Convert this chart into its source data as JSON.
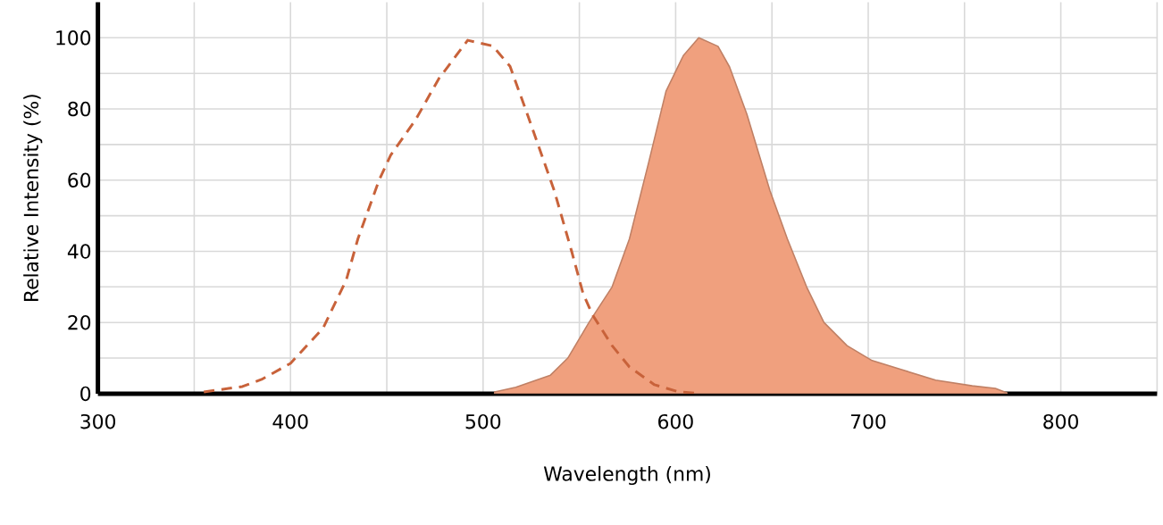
{
  "chart_data": {
    "type": "line",
    "xlabel": "Wavelength (nm)",
    "ylabel": "Relative Intensity (%)",
    "xlim": [
      300,
      850
    ],
    "ylim": [
      0,
      110
    ],
    "xticks": [
      300,
      {
        "value": 350,
        "label": null
      },
      400,
      {
        "value": 450,
        "label": null
      },
      500,
      {
        "value": 550,
        "label": null
      },
      600,
      {
        "value": 650,
        "label": null
      },
      700,
      {
        "value": 750,
        "label": null
      },
      800,
      {
        "value": 850,
        "label": null
      }
    ],
    "yticks": [
      0,
      {
        "value": 10,
        "label": null
      },
      20,
      {
        "value": 30,
        "label": null
      },
      40,
      {
        "value": 50,
        "label": null
      },
      60,
      {
        "value": 70,
        "label": null
      },
      80,
      {
        "value": 90,
        "label": null
      },
      100
    ],
    "grid": true,
    "series": [
      {
        "line_style": "dashed",
        "color": "#c8623a",
        "x": [
          355,
          375,
          385,
          400,
          417,
          429,
          435,
          446,
          452,
          465,
          477,
          492,
          505,
          514,
          523,
          537,
          546,
          552,
          557,
          567,
          576,
          589,
          601,
          613
        ],
        "values": [
          0.5,
          2,
          4,
          8.5,
          18.5,
          32,
          43.5,
          60,
          67,
          77,
          88.5,
          99.3,
          97.7,
          92,
          78.5,
          57,
          40,
          28,
          22,
          13.5,
          7.5,
          2.5,
          0.6,
          0
        ]
      },
      {
        "type": "area",
        "line_style": "solid",
        "color": "#f0a07e",
        "x": [
          506,
          517,
          535,
          544,
          555,
          567,
          576,
          586,
          595,
          604,
          612,
          622,
          628,
          637,
          649,
          658,
          668,
          677,
          689,
          702,
          717,
          735,
          754,
          766,
          772
        ],
        "values": [
          0.5,
          1.8,
          5.2,
          10,
          20,
          30,
          43.5,
          65,
          85,
          95,
          100,
          97.6,
          91.8,
          78.5,
          57,
          43.5,
          30,
          20,
          13.5,
          9.3,
          6.8,
          3.8,
          2.2,
          1.5,
          0.2
        ]
      }
    ]
  }
}
